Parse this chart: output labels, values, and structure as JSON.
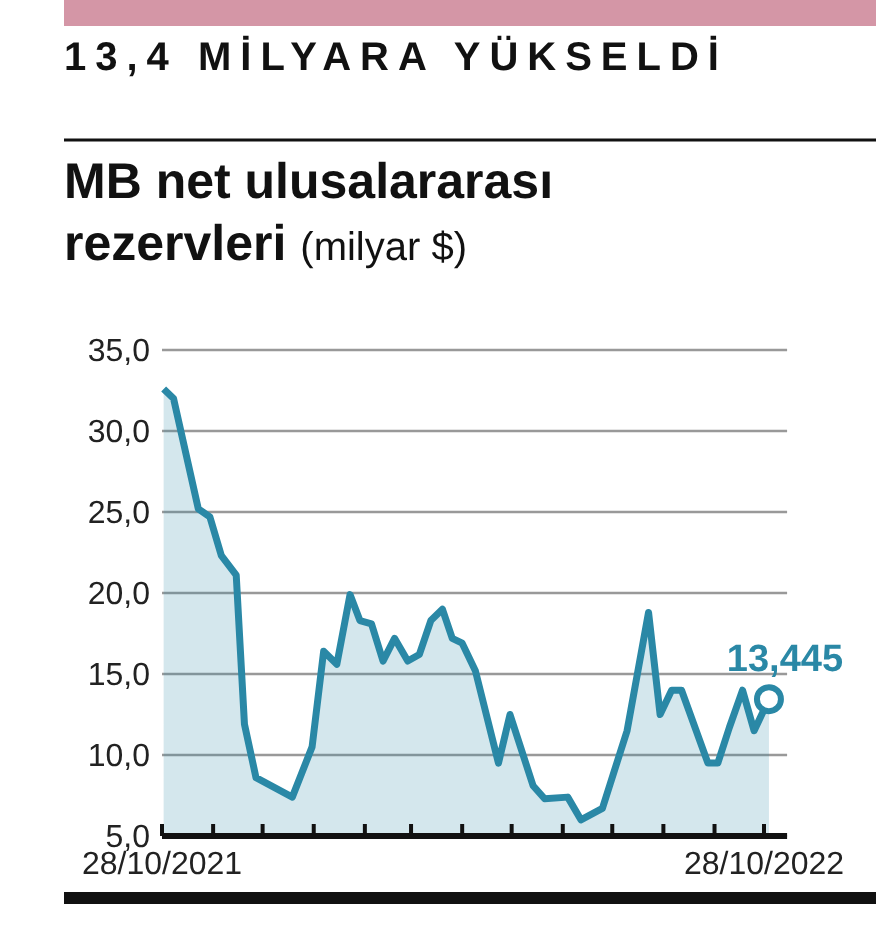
{
  "chart_data": {
    "type": "area",
    "title": "13,4 MİLYARA YÜKSELDİ",
    "subtitle": "MB net ulusalararası rezervleri",
    "ylabel": "(milyar $)",
    "x": [
      "2021-10-29",
      "2021-11-04",
      "2021-11-19",
      "2021-11-26",
      "2021-12-03",
      "2021-12-12",
      "2021-12-17",
      "2021-12-24",
      "2022-01-15",
      "2022-01-27",
      "2022-02-03",
      "2022-02-11",
      "2022-02-19",
      "2022-02-25",
      "2022-03-04",
      "2022-03-11",
      "2022-03-18",
      "2022-03-26",
      "2022-04-02",
      "2022-04-09",
      "2022-04-16",
      "2022-04-22",
      "2022-04-28",
      "2022-05-06",
      "2022-05-20",
      "2022-05-27",
      "2022-06-10",
      "2022-06-17",
      "2022-07-01",
      "2022-07-09",
      "2022-07-22",
      "2022-08-06",
      "2022-08-19",
      "2022-08-26",
      "2022-09-02",
      "2022-09-08",
      "2022-09-24",
      "2022-09-30",
      "2022-10-07",
      "2022-10-15",
      "2022-10-22",
      "2022-10-31"
    ],
    "series": [
      {
        "color": "#2a88a6",
        "values": [
          32.6,
          32.0,
          25.2,
          24.7,
          22.3,
          21.1,
          11.9,
          8.6,
          7.4,
          10.5,
          16.4,
          15.6,
          19.9,
          18.3,
          18.1,
          15.8,
          17.2,
          15.8,
          16.2,
          18.3,
          19.0,
          17.2,
          16.9,
          15.2,
          9.5,
          12.5,
          8.1,
          7.3,
          7.4,
          6.0,
          6.7,
          11.5,
          18.8,
          12.5,
          14.0,
          14.0,
          9.5,
          9.5,
          11.7,
          14.0,
          11.5,
          13.445
        ]
      }
    ],
    "xlim": [
      "2021-10-28",
      "2022-11-11"
    ],
    "xticks": [
      {
        "value": "2021-10-28",
        "label": "28/10/2021"
      },
      {
        "value": "2021-11-28",
        "label": null
      },
      {
        "value": "2021-12-28",
        "label": null
      },
      {
        "value": "2022-01-28",
        "label": null
      },
      {
        "value": "2022-02-28",
        "label": null
      },
      {
        "value": "2022-03-28",
        "label": null
      },
      {
        "value": "2022-04-28",
        "label": null
      },
      {
        "value": "2022-05-28",
        "label": null
      },
      {
        "value": "2022-06-28",
        "label": null
      },
      {
        "value": "2022-07-28",
        "label": null
      },
      {
        "value": "2022-08-28",
        "label": null
      },
      {
        "value": "2022-09-28",
        "label": null
      },
      {
        "value": "2022-10-28",
        "label": "28/10/2022"
      }
    ],
    "ylim": [
      5,
      35
    ],
    "yticks": [
      {
        "value": 5,
        "label": "5,0"
      },
      {
        "value": 10,
        "label": "10,0"
      },
      {
        "value": 15,
        "label": "15,0"
      },
      {
        "value": 20,
        "label": "20,0"
      },
      {
        "value": 25,
        "label": "25,0"
      },
      {
        "value": 30,
        "label": "30,0"
      },
      {
        "value": 35,
        "label": "35,0"
      }
    ],
    "grid": "y",
    "marker": "none",
    "line_style": "solid",
    "annotations": [
      {
        "text": "13,445",
        "x": "2022-10-31",
        "y": 13.445
      }
    ]
  }
}
